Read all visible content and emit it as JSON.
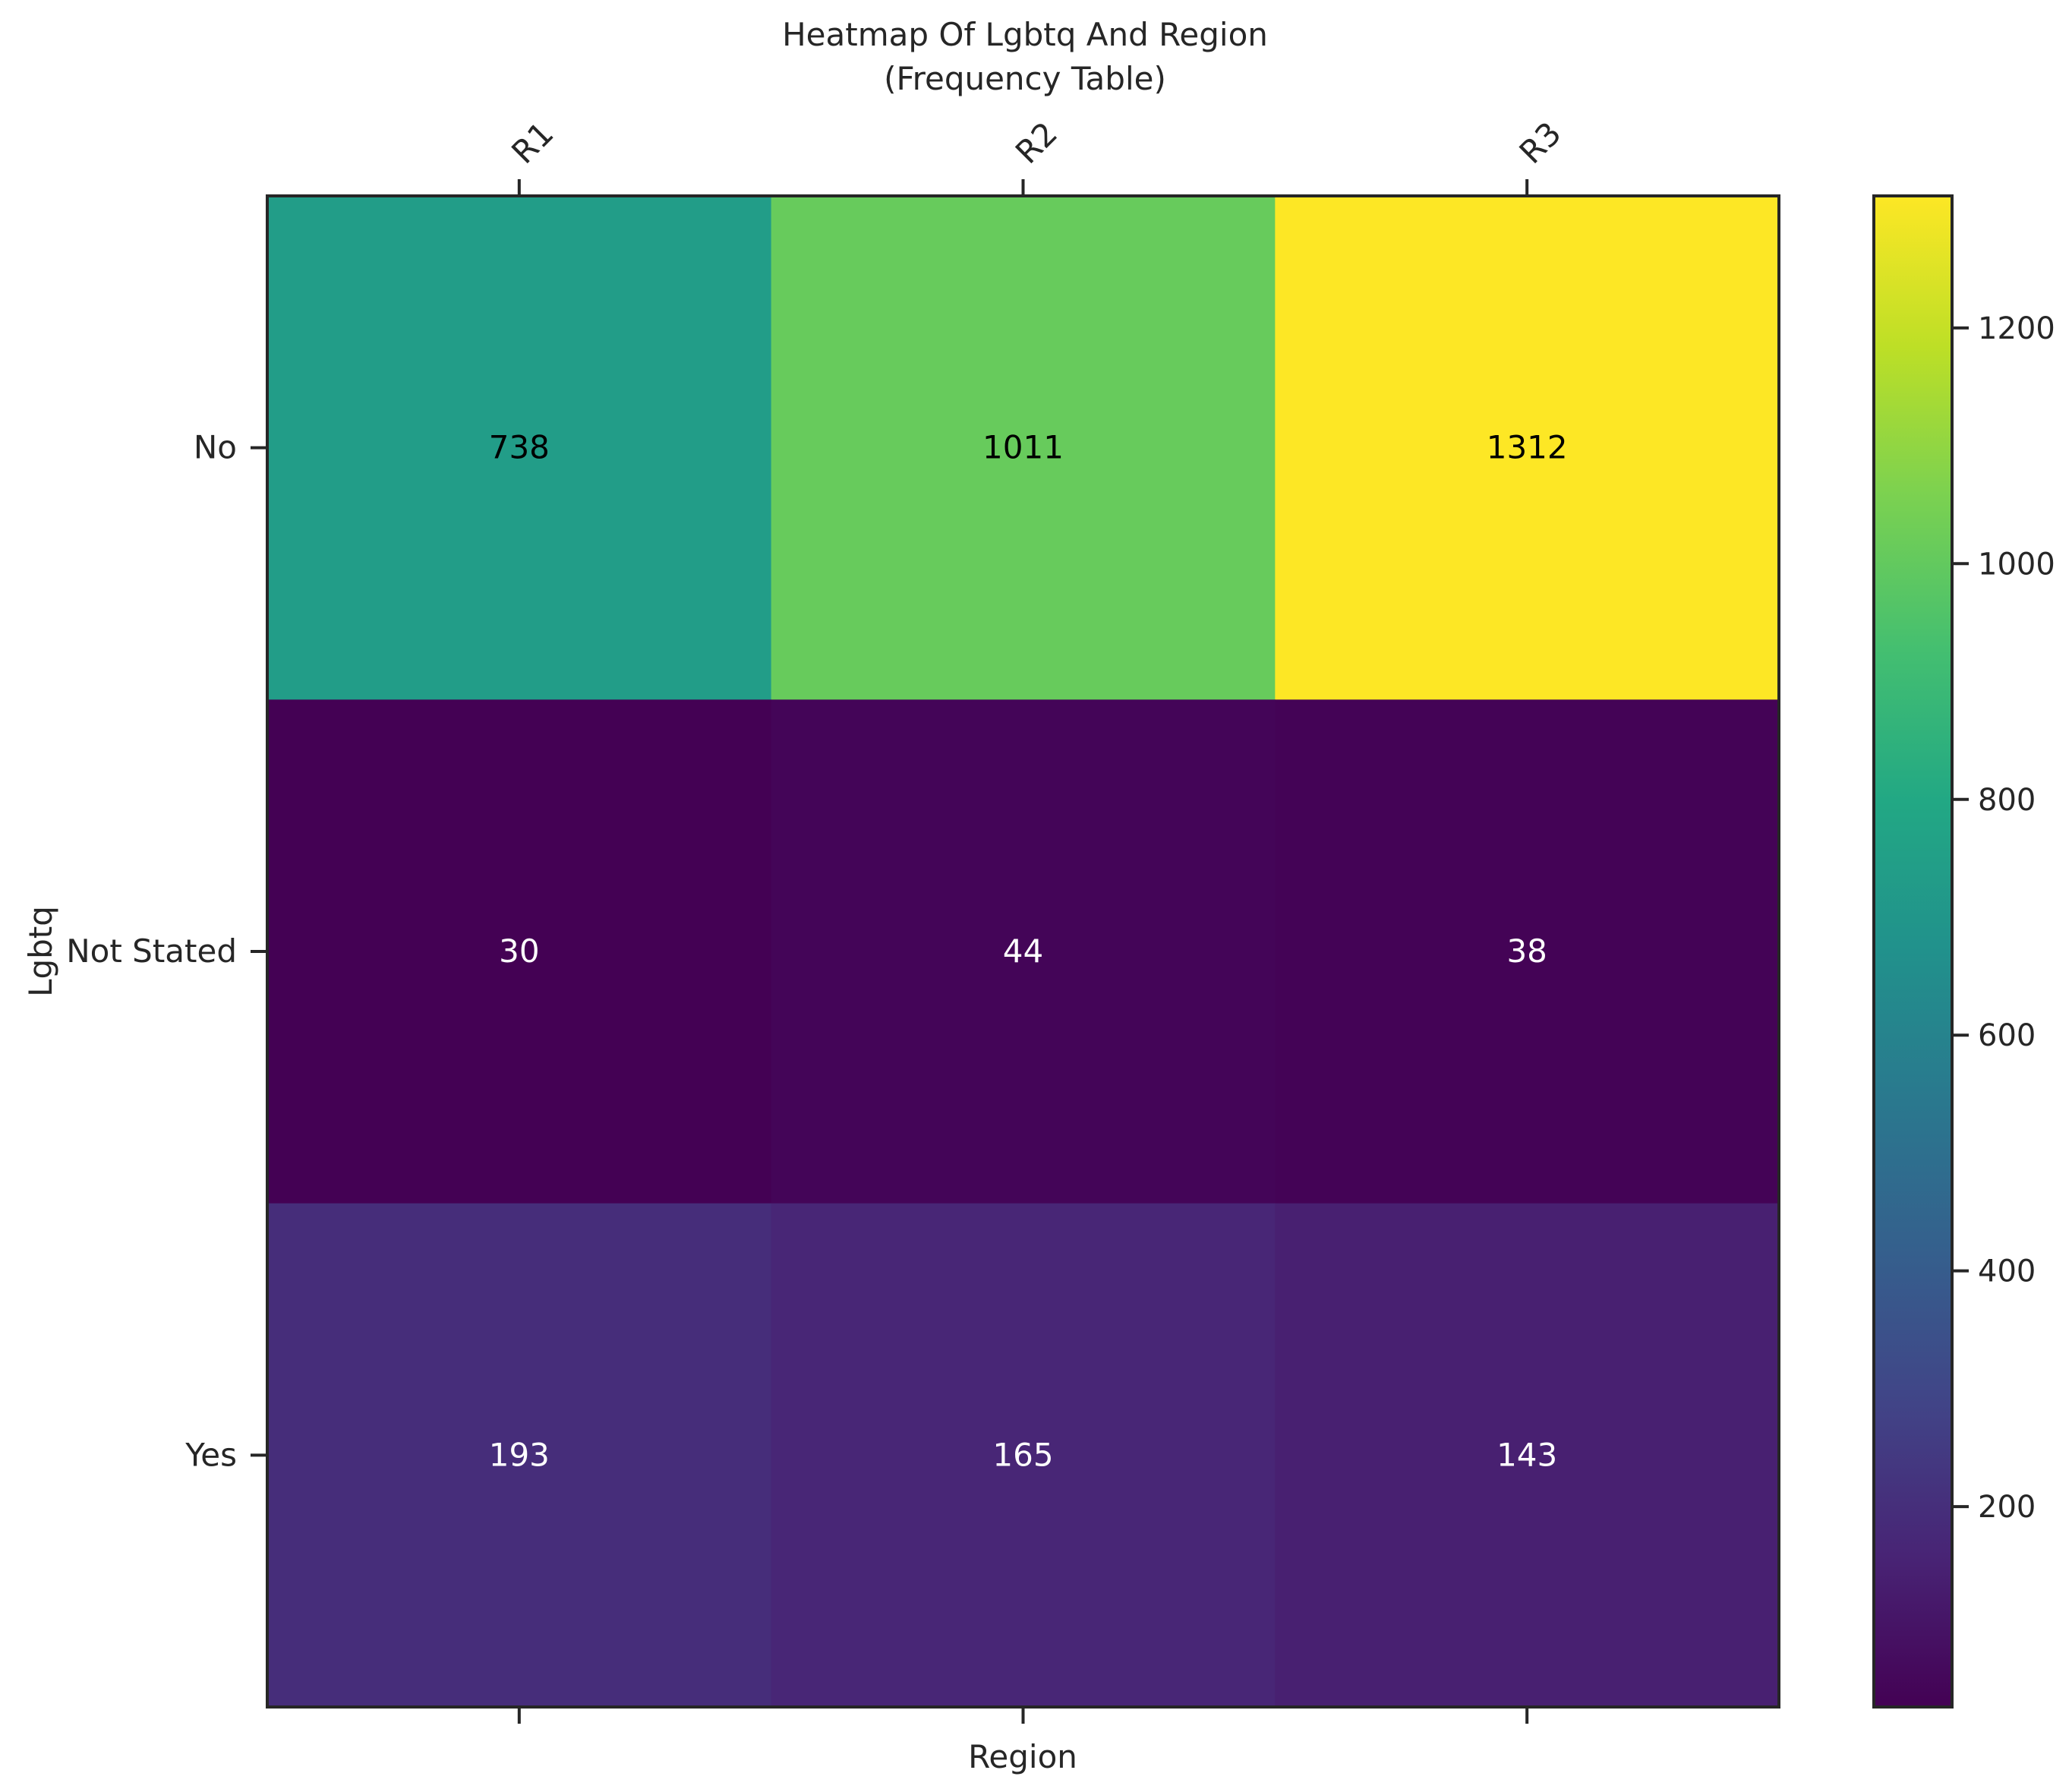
{
  "chart_data": {
    "type": "heatmap",
    "title": "Heatmap Of Lgbtq And Region",
    "subtitle": "(Frequency Table)",
    "xlabel": "Region",
    "ylabel": "Lgbtq",
    "x_categories": [
      "R1",
      "R2",
      "R3"
    ],
    "y_categories": [
      "No",
      "Not Stated",
      "Yes"
    ],
    "values": [
      [
        738,
        1011,
        1312
      ],
      [
        30,
        44,
        38
      ],
      [
        193,
        165,
        143
      ]
    ],
    "colormap": "viridis",
    "colorbar": {
      "range": [
        30,
        1312
      ],
      "ticks": [
        200,
        400,
        600,
        800,
        1000,
        1200
      ]
    },
    "x_tick_position": "top",
    "grid": false
  }
}
